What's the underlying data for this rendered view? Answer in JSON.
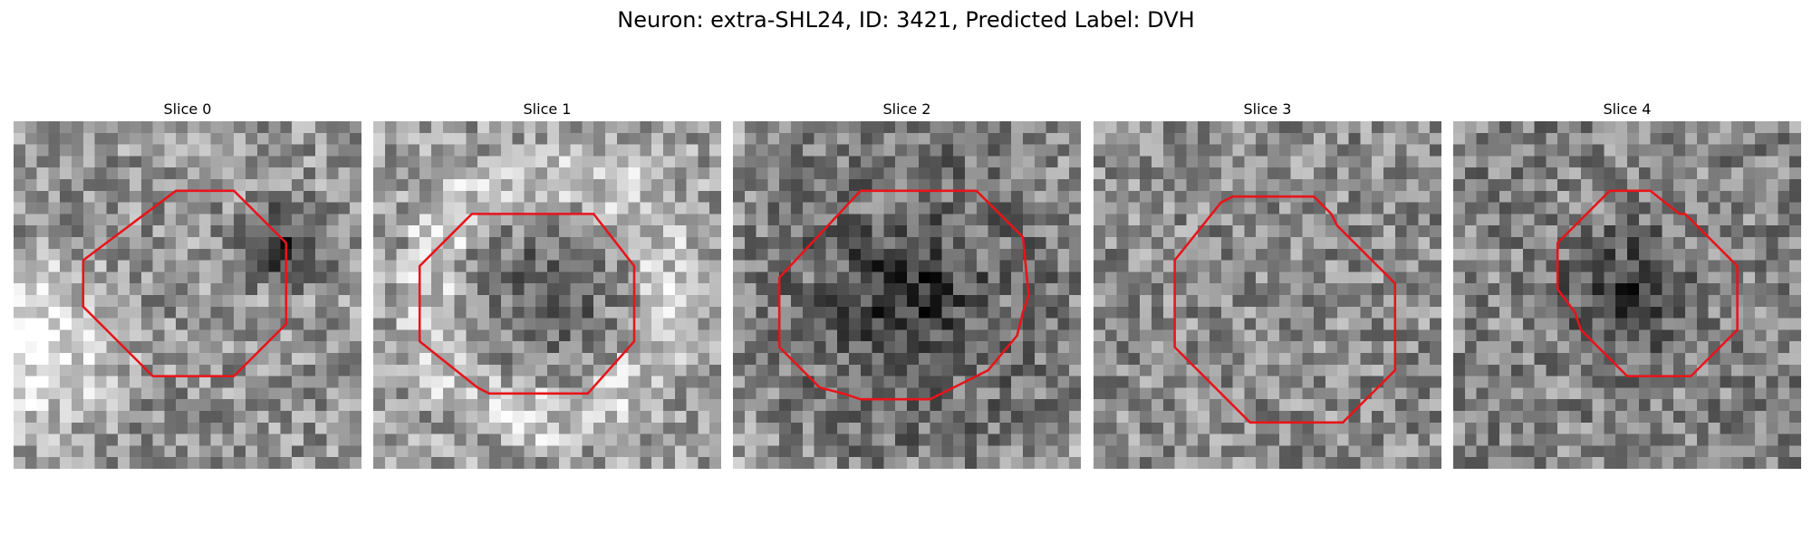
{
  "figure": {
    "title": "Neuron: extra-SHL24, ID: 3421, Predicted Label: DVH",
    "outline_color": "#e8141a",
    "panels": [
      {
        "title": "Slice 0",
        "brightness": 0.58,
        "dark_blob": "right",
        "bright_region": "lower-left"
      },
      {
        "title": "Slice 1",
        "brightness": 0.62,
        "dark_blob": "center",
        "bright_region": "ring"
      },
      {
        "title": "Slice 2",
        "brightness": 0.45,
        "dark_blob": "center",
        "bright_region": "edges"
      },
      {
        "title": "Slice 3",
        "brightness": 0.55,
        "dark_blob": "none",
        "bright_region": "none"
      },
      {
        "title": "Slice 4",
        "brightness": 0.52,
        "dark_blob": "center",
        "bright_region": "none"
      }
    ]
  }
}
